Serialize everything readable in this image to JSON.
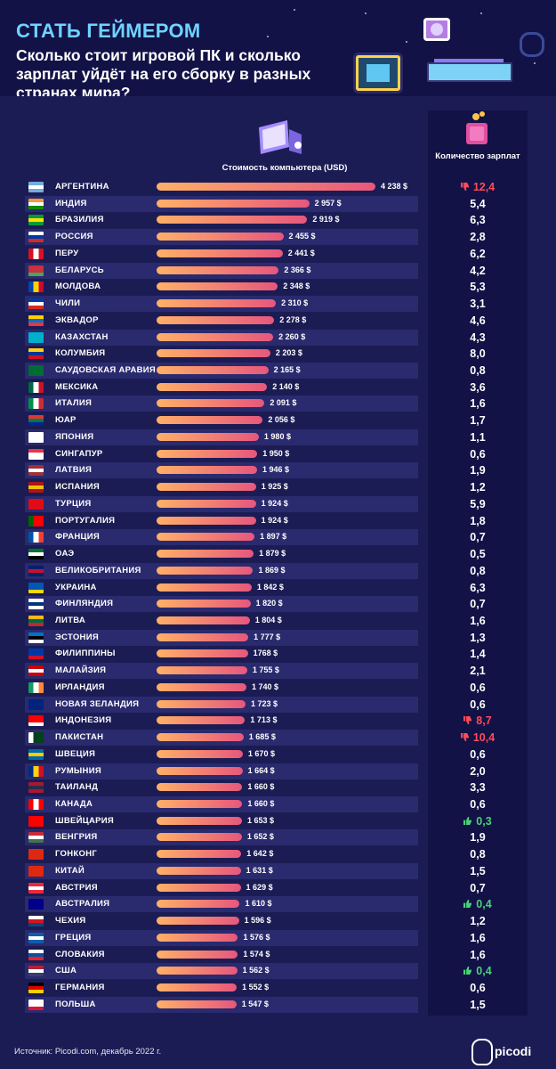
{
  "header": {
    "title": "СТАТЬ ГЕЙМЕРОМ",
    "subtitle": "Сколько стоит игровой ПК и сколько зарплат уйдёт на его сборку в разных странах мира?"
  },
  "columns": {
    "cost": "Стоимость компьютера (USD)",
    "count": "Количество зарплат"
  },
  "footer": {
    "source": "Источник: Picodi.com, декабрь 2022 г.",
    "logo": "picodi"
  },
  "chart_data": {
    "type": "bar",
    "orientation": "horizontal",
    "series": [
      {
        "name": "Стоимость компьютера (USD)",
        "unit": "$"
      },
      {
        "name": "Количество зарплат"
      }
    ],
    "max_value": 4238,
    "rows": [
      {
        "country": "АРГЕНТИНА",
        "cost": 4238,
        "cost_label": "4 238 $",
        "salaries": "12,4",
        "mark": "down",
        "flag": [
          "#74acdf",
          "#ffffff",
          "#74acdf"
        ]
      },
      {
        "country": "ИНДИЯ",
        "cost": 2957,
        "cost_label": "2 957 $",
        "salaries": "5,4",
        "mark": "",
        "flag": [
          "#ff9933",
          "#ffffff",
          "#138808"
        ]
      },
      {
        "country": "БРАЗИЛИЯ",
        "cost": 2919,
        "cost_label": "2 919 $",
        "salaries": "6,3",
        "mark": "",
        "flag": [
          "#009c3b",
          "#ffdf00",
          "#009c3b"
        ]
      },
      {
        "country": "РОССИЯ",
        "cost": 2455,
        "cost_label": "2 455 $",
        "salaries": "2,8",
        "mark": "",
        "flag": [
          "#ffffff",
          "#0039a6",
          "#d52b1e"
        ]
      },
      {
        "country": "ПЕРУ",
        "cost": 2441,
        "cost_label": "2 441 $",
        "salaries": "6,2",
        "mark": "",
        "flag": [
          "#d91023",
          "#ffffff",
          "#d91023"
        ],
        "vertical": true
      },
      {
        "country": "БЕЛАРУСЬ",
        "cost": 2366,
        "cost_label": "2 366 $",
        "salaries": "4,2",
        "mark": "",
        "flag": [
          "#c8313e",
          "#c8313e",
          "#4aa657"
        ]
      },
      {
        "country": "МОЛДОВА",
        "cost": 2348,
        "cost_label": "2 348 $",
        "salaries": "5,3",
        "mark": "",
        "flag": [
          "#0046ae",
          "#ffd200",
          "#cc092f"
        ],
        "vertical": true
      },
      {
        "country": "ЧИЛИ",
        "cost": 2310,
        "cost_label": "2 310 $",
        "salaries": "3,1",
        "mark": "",
        "flag": [
          "#0039a6",
          "#ffffff",
          "#d52b1e"
        ]
      },
      {
        "country": "ЭКВАДОР",
        "cost": 2278,
        "cost_label": "2 278 $",
        "salaries": "4,6",
        "mark": "",
        "flag": [
          "#ffd100",
          "#0072ce",
          "#ef3340"
        ]
      },
      {
        "country": "КАЗАХСТАН",
        "cost": 2260,
        "cost_label": "2 260 $",
        "salaries": "4,3",
        "mark": "",
        "flag": [
          "#00afca",
          "#00afca",
          "#00afca"
        ]
      },
      {
        "country": "КОЛУМБИЯ",
        "cost": 2203,
        "cost_label": "2 203 $",
        "salaries": "8,0",
        "mark": "",
        "flag": [
          "#fcd116",
          "#003893",
          "#ce1126"
        ]
      },
      {
        "country": "САУДОВСКАЯ АРАВИЯ",
        "cost": 2165,
        "cost_label": "2 165 $",
        "salaries": "0,8",
        "mark": "",
        "flag": [
          "#006c35",
          "#006c35",
          "#006c35"
        ]
      },
      {
        "country": "МЕКСИКА",
        "cost": 2140,
        "cost_label": "2 140 $",
        "salaries": "3,6",
        "mark": "",
        "flag": [
          "#006847",
          "#ffffff",
          "#ce1126"
        ],
        "vertical": true
      },
      {
        "country": "ИТАЛИЯ",
        "cost": 2091,
        "cost_label": "2 091 $",
        "salaries": "1,6",
        "mark": "",
        "flag": [
          "#009246",
          "#ffffff",
          "#ce2b37"
        ],
        "vertical": true
      },
      {
        "country": "ЮАР",
        "cost": 2056,
        "cost_label": "2 056 $",
        "salaries": "1,7",
        "mark": "",
        "flag": [
          "#de3831",
          "#007a4d",
          "#002395"
        ]
      },
      {
        "country": "ЯПОНИЯ",
        "cost": 1980,
        "cost_label": "1 980 $",
        "salaries": "1,1",
        "mark": "",
        "flag": [
          "#ffffff",
          "#ffffff",
          "#ffffff"
        ]
      },
      {
        "country": "СИНГАПУР",
        "cost": 1950,
        "cost_label": "1 950 $",
        "salaries": "0,6",
        "mark": "",
        "flag": [
          "#ef3340",
          "#ffffff",
          "#ffffff"
        ]
      },
      {
        "country": "ЛАТВИЯ",
        "cost": 1946,
        "cost_label": "1 946 $",
        "salaries": "1,9",
        "mark": "",
        "flag": [
          "#9e3039",
          "#ffffff",
          "#9e3039"
        ]
      },
      {
        "country": "ИСПАНИЯ",
        "cost": 1925,
        "cost_label": "1 925 $",
        "salaries": "1,2",
        "mark": "",
        "flag": [
          "#aa151b",
          "#f1bf00",
          "#aa151b"
        ]
      },
      {
        "country": "ТУРЦИЯ",
        "cost": 1924,
        "cost_label": "1 924 $",
        "salaries": "5,9",
        "mark": "",
        "flag": [
          "#e30a17",
          "#e30a17",
          "#e30a17"
        ]
      },
      {
        "country": "ПОРТУГАЛИЯ",
        "cost": 1924,
        "cost_label": "1 924 $",
        "salaries": "1,8",
        "mark": "",
        "flag": [
          "#006600",
          "#ff0000",
          "#ff0000"
        ],
        "vertical": true
      },
      {
        "country": "ФРАНЦИЯ",
        "cost": 1897,
        "cost_label": "1 897 $",
        "salaries": "0,7",
        "mark": "",
        "flag": [
          "#0055a4",
          "#ffffff",
          "#ef4135"
        ],
        "vertical": true
      },
      {
        "country": "ОАЭ",
        "cost": 1879,
        "cost_label": "1 879 $",
        "salaries": "0,5",
        "mark": "",
        "flag": [
          "#00732f",
          "#ffffff",
          "#000000"
        ]
      },
      {
        "country": "ВЕЛИКОБРИТАНИЯ",
        "cost": 1869,
        "cost_label": "1 869 $",
        "salaries": "0,8",
        "mark": "",
        "flag": [
          "#012169",
          "#c8102e",
          "#012169"
        ]
      },
      {
        "country": "УКРАИНА",
        "cost": 1842,
        "cost_label": "1 842 $",
        "salaries": "6,3",
        "mark": "",
        "flag": [
          "#0057b7",
          "#0057b7",
          "#ffd700"
        ]
      },
      {
        "country": "ФИНЛЯНДИЯ",
        "cost": 1820,
        "cost_label": "1 820 $",
        "salaries": "0,7",
        "mark": "",
        "flag": [
          "#ffffff",
          "#003580",
          "#ffffff"
        ]
      },
      {
        "country": "ЛИТВА",
        "cost": 1804,
        "cost_label": "1 804 $",
        "salaries": "1,6",
        "mark": "",
        "flag": [
          "#fdb913",
          "#006a44",
          "#c1272d"
        ]
      },
      {
        "country": "ЭСТОНИЯ",
        "cost": 1777,
        "cost_label": "1 777 $",
        "salaries": "1,3",
        "mark": "",
        "flag": [
          "#0072ce",
          "#000000",
          "#ffffff"
        ]
      },
      {
        "country": "ФИЛИППИНЫ",
        "cost": 1768,
        "cost_label": "1768 $",
        "salaries": "1,4",
        "mark": "",
        "flag": [
          "#0038a8",
          "#0038a8",
          "#ce1126"
        ]
      },
      {
        "country": "МАЛАЙЗИЯ",
        "cost": 1755,
        "cost_label": "1 755 $",
        "salaries": "2,1",
        "mark": "",
        "flag": [
          "#cc0001",
          "#ffffff",
          "#cc0001"
        ]
      },
      {
        "country": "ИРЛАНДИЯ",
        "cost": 1740,
        "cost_label": "1 740 $",
        "salaries": "0,6",
        "mark": "",
        "flag": [
          "#169b62",
          "#ffffff",
          "#ff883e"
        ],
        "vertical": true
      },
      {
        "country": "НОВАЯ ЗЕЛАНДИЯ",
        "cost": 1723,
        "cost_label": "1 723 $",
        "salaries": "0,6",
        "mark": "",
        "flag": [
          "#00247d",
          "#00247d",
          "#00247d"
        ]
      },
      {
        "country": "ИНДОНЕЗИЯ",
        "cost": 1713,
        "cost_label": "1 713 $",
        "salaries": "8,7",
        "mark": "down",
        "flag": [
          "#ff0000",
          "#ff0000",
          "#ffffff"
        ]
      },
      {
        "country": "ПАКИСТАН",
        "cost": 1685,
        "cost_label": "1 685 $",
        "salaries": "10,4",
        "mark": "down",
        "flag": [
          "#ffffff",
          "#01411c",
          "#01411c"
        ],
        "vertical": true
      },
      {
        "country": "ШВЕЦИЯ",
        "cost": 1670,
        "cost_label": "1 670 $",
        "salaries": "0,6",
        "mark": "",
        "flag": [
          "#006aa7",
          "#fecc00",
          "#006aa7"
        ]
      },
      {
        "country": "РУМЫНИЯ",
        "cost": 1664,
        "cost_label": "1 664 $",
        "salaries": "2,0",
        "mark": "",
        "flag": [
          "#002b7f",
          "#fcd116",
          "#ce1126"
        ],
        "vertical": true
      },
      {
        "country": "ТАИЛАНД",
        "cost": 1660,
        "cost_label": "1 660 $",
        "salaries": "3,3",
        "mark": "",
        "flag": [
          "#a51931",
          "#2d2a4a",
          "#a51931"
        ]
      },
      {
        "country": "КАНАДА",
        "cost": 1660,
        "cost_label": "1 660 $",
        "salaries": "0,6",
        "mark": "",
        "flag": [
          "#ff0000",
          "#ffffff",
          "#ff0000"
        ],
        "vertical": true
      },
      {
        "country": "ШВЕЙЦАРИЯ",
        "cost": 1653,
        "cost_label": "1 653 $",
        "salaries": "0,3",
        "mark": "up",
        "flag": [
          "#ff0000",
          "#ff0000",
          "#ff0000"
        ]
      },
      {
        "country": "ВЕНГРИЯ",
        "cost": 1652,
        "cost_label": "1 652 $",
        "salaries": "1,9",
        "mark": "",
        "flag": [
          "#ce2939",
          "#ffffff",
          "#477050"
        ]
      },
      {
        "country": "ГОНКОНГ",
        "cost": 1642,
        "cost_label": "1 642 $",
        "salaries": "0,8",
        "mark": "",
        "flag": [
          "#de2910",
          "#de2910",
          "#de2910"
        ]
      },
      {
        "country": "КИТАЙ",
        "cost": 1631,
        "cost_label": "1 631 $",
        "salaries": "1,5",
        "mark": "",
        "flag": [
          "#de2910",
          "#de2910",
          "#de2910"
        ]
      },
      {
        "country": "АВСТРИЯ",
        "cost": 1629,
        "cost_label": "1 629 $",
        "salaries": "0,7",
        "mark": "",
        "flag": [
          "#ed2939",
          "#ffffff",
          "#ed2939"
        ]
      },
      {
        "country": "АВСТРАЛИЯ",
        "cost": 1610,
        "cost_label": "1 610 $",
        "salaries": "0,4",
        "mark": "up",
        "flag": [
          "#00008b",
          "#00008b",
          "#00008b"
        ]
      },
      {
        "country": "ЧЕХИЯ",
        "cost": 1596,
        "cost_label": "1 596 $",
        "salaries": "1,2",
        "mark": "",
        "flag": [
          "#ffffff",
          "#d7141a",
          "#11457e"
        ]
      },
      {
        "country": "ГРЕЦИЯ",
        "cost": 1576,
        "cost_label": "1 576 $",
        "salaries": "1,6",
        "mark": "",
        "flag": [
          "#0d5eaf",
          "#ffffff",
          "#0d5eaf"
        ]
      },
      {
        "country": "СЛОВАКИЯ",
        "cost": 1574,
        "cost_label": "1 574 $",
        "salaries": "1,6",
        "mark": "",
        "flag": [
          "#ffffff",
          "#0b4ea2",
          "#ee1c25"
        ]
      },
      {
        "country": "США",
        "cost": 1562,
        "cost_label": "1 562 $",
        "salaries": "0,4",
        "mark": "up",
        "flag": [
          "#b22234",
          "#ffffff",
          "#3c3b6e"
        ]
      },
      {
        "country": "ГЕРМАНИЯ",
        "cost": 1552,
        "cost_label": "1 552 $",
        "salaries": "0,6",
        "mark": "",
        "flag": [
          "#000000",
          "#dd0000",
          "#ffce00"
        ]
      },
      {
        "country": "ПОЛЬША",
        "cost": 1547,
        "cost_label": "1 547 $",
        "salaries": "1,5",
        "mark": "",
        "flag": [
          "#ffffff",
          "#ffffff",
          "#dc143c"
        ]
      }
    ]
  }
}
